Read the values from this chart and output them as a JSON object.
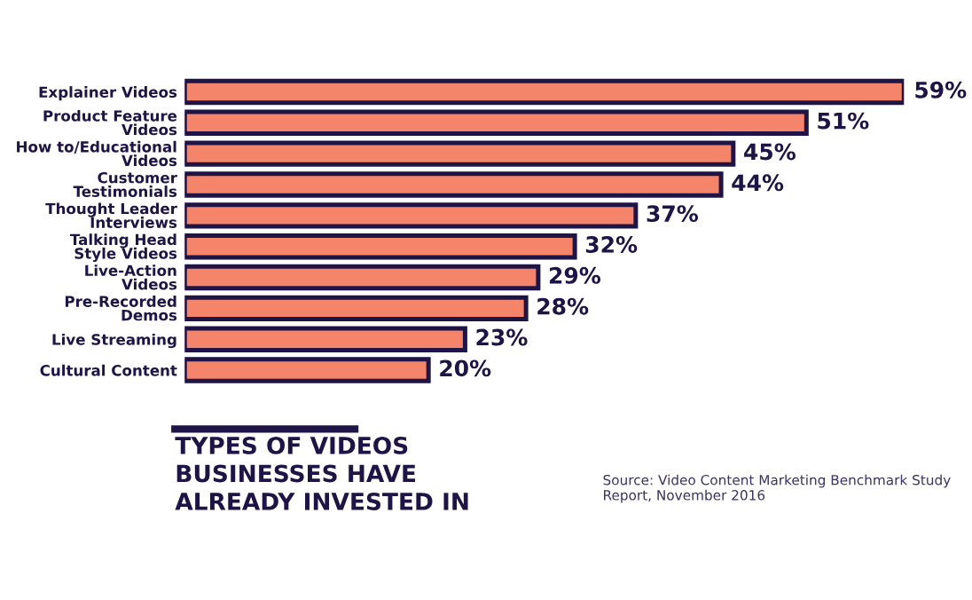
{
  "chart_data": {
    "type": "bar",
    "orientation": "horizontal",
    "title": "TYPES OF VIDEOS\nBUSINESSES HAVE\nALREADY INVESTED IN",
    "categories": [
      "Explainer Videos",
      "Product Feature\nVideos",
      "How to/Educational\nVideos",
      "Customer\nTestimonials",
      "Thought Leader\nInterviews",
      "Talking Head\nStyle Videos",
      "Live-Action\nVideos",
      "Pre-Recorded\nDemos",
      "Live Streaming",
      "Cultural Content"
    ],
    "values": [
      59,
      51,
      45,
      44,
      37,
      32,
      29,
      28,
      23,
      20
    ],
    "value_labels": [
      "59%",
      "51%",
      "45%",
      "44%",
      "37%",
      "32%",
      "29%",
      "28%",
      "23%",
      "20%"
    ],
    "color": "#f4846a",
    "annotations": [
      "Source: Video Content Marketing Benchmark Study Report, November 2016"
    ]
  }
}
